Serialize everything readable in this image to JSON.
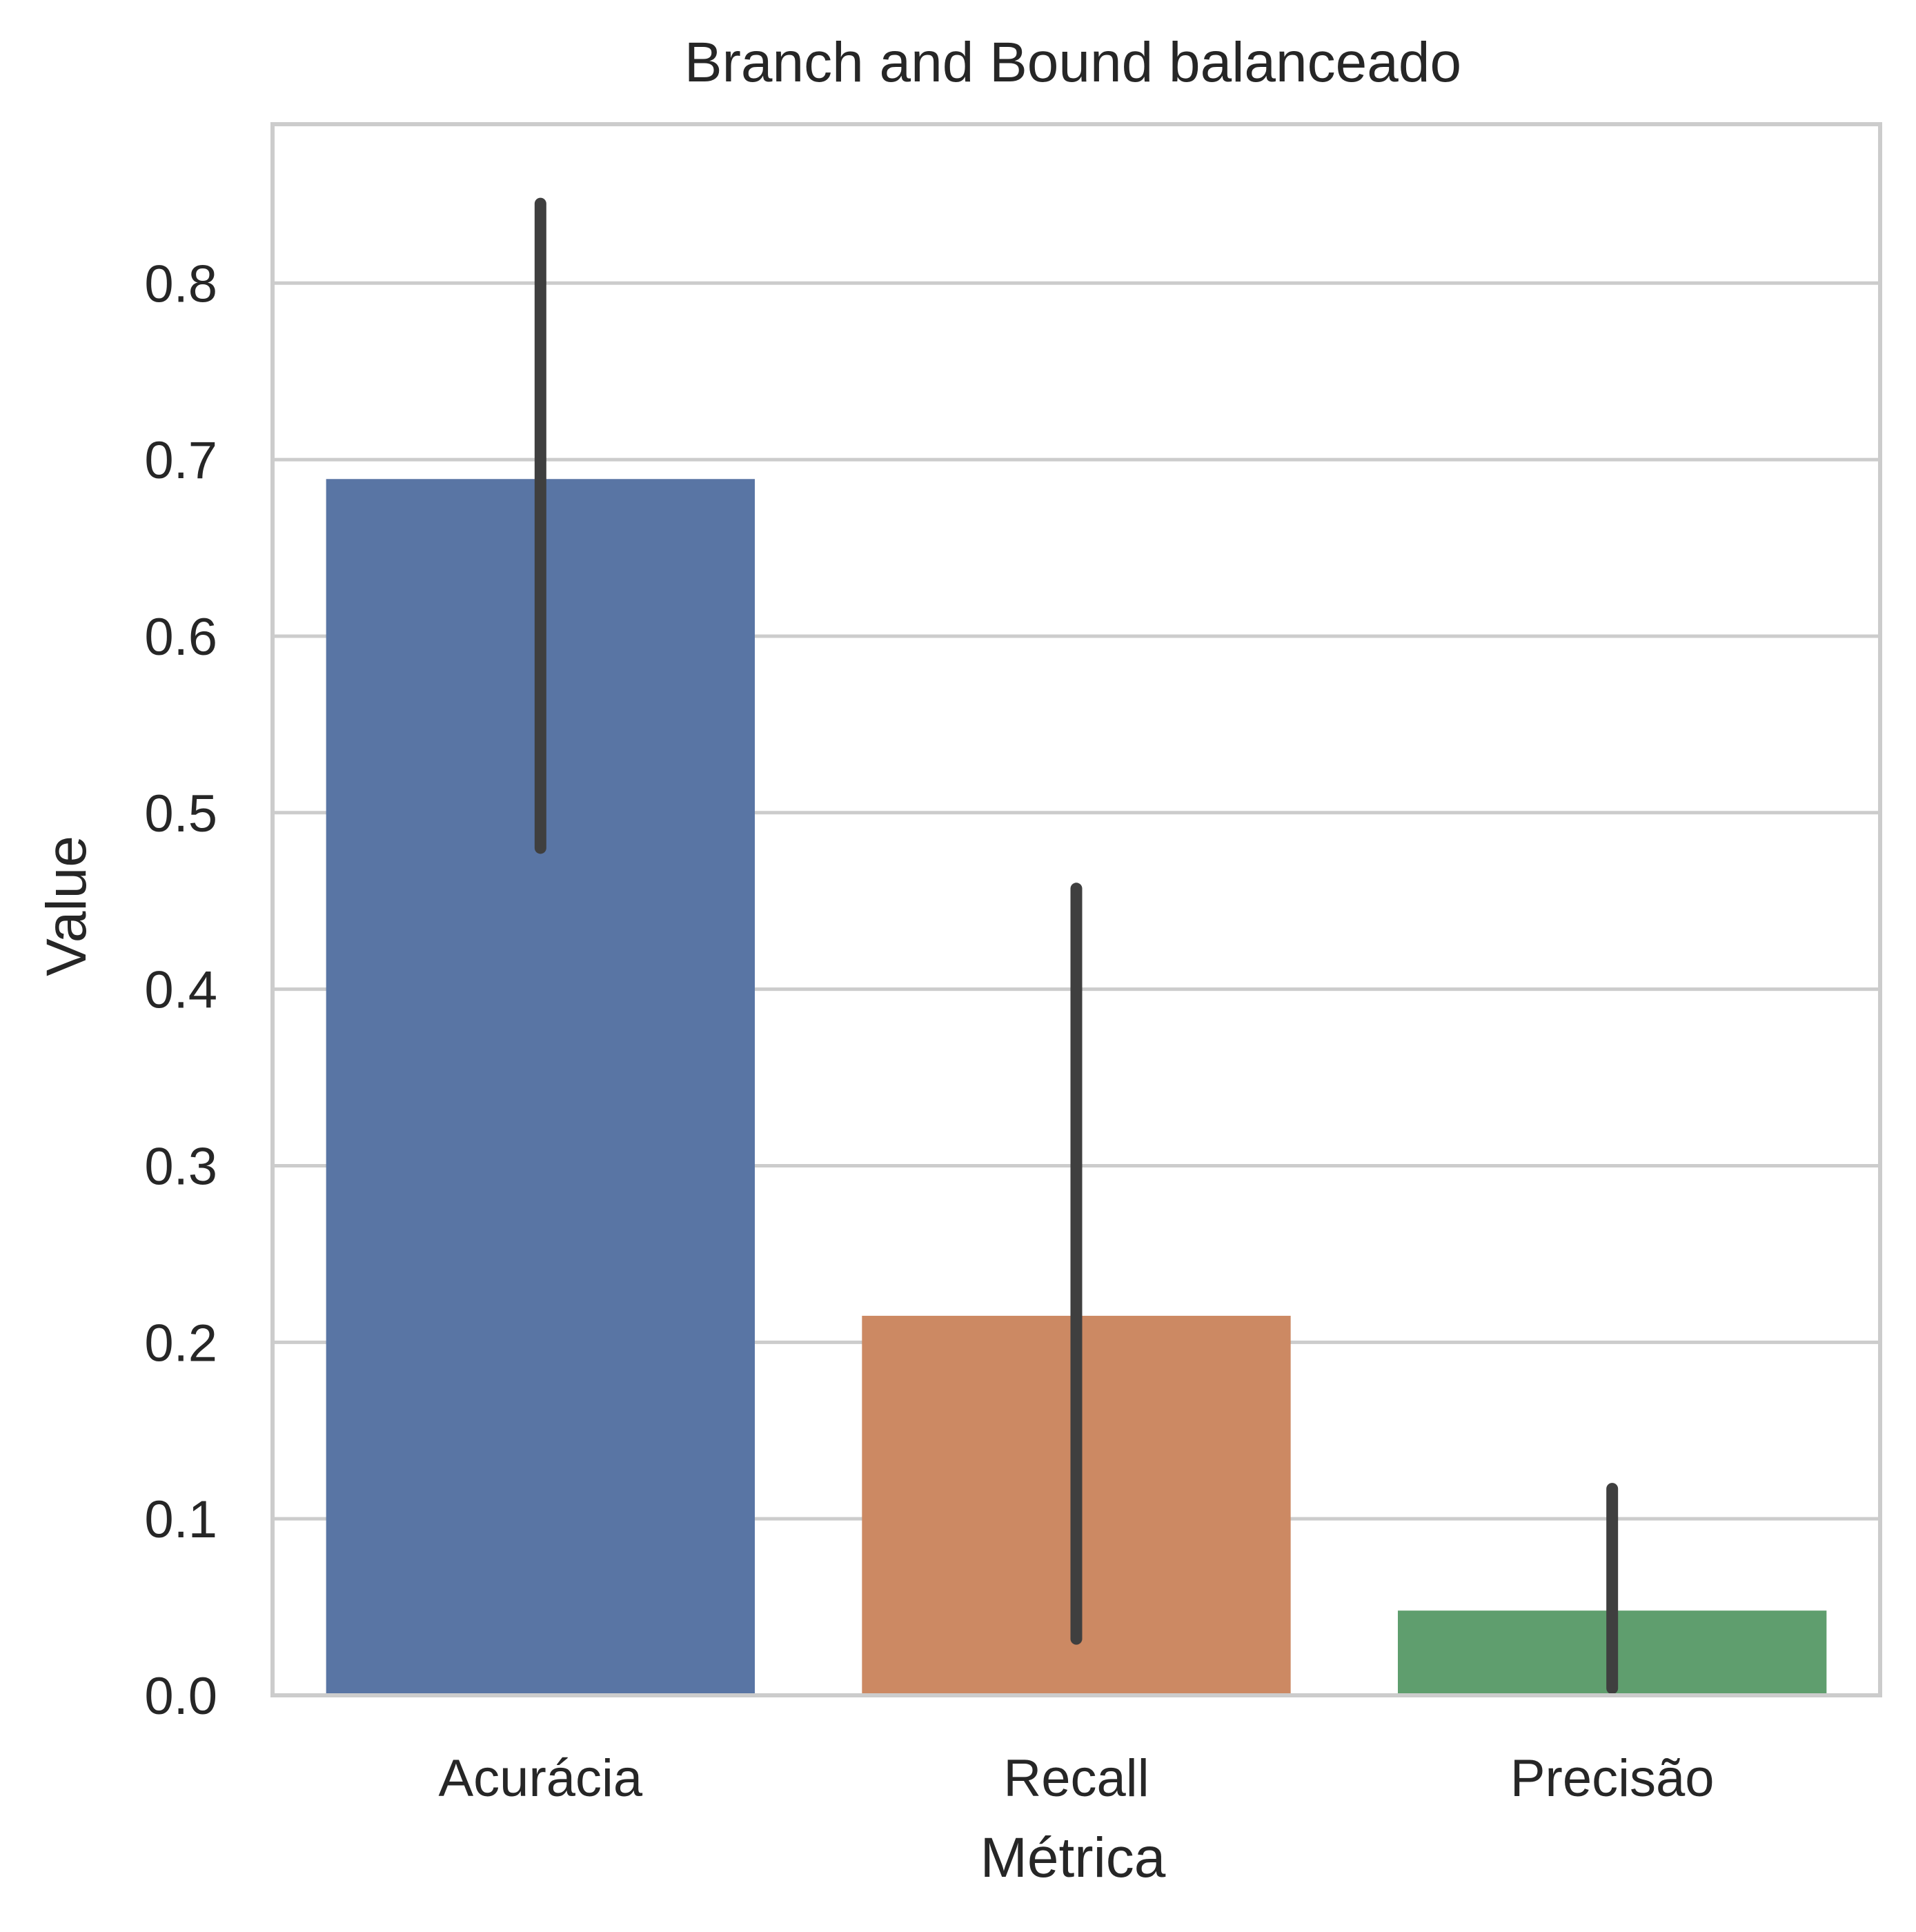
{
  "chart_data": {
    "type": "bar",
    "title": "Branch and Bound balanceado",
    "xlabel": "Métrica",
    "ylabel": "Value",
    "categories": [
      "Acurácia",
      "Recall",
      "Precisão"
    ],
    "values": [
      0.689,
      0.215,
      0.048
    ],
    "error_bars": [
      {
        "low": 0.48,
        "high": 0.845
      },
      {
        "low": 0.032,
        "high": 0.457
      },
      {
        "low": 0.004,
        "high": 0.117
      }
    ],
    "ylim": [
      0,
      0.89
    ],
    "yticks": [
      "0.0",
      "0.1",
      "0.2",
      "0.3",
      "0.4",
      "0.5",
      "0.6",
      "0.7",
      "0.8"
    ],
    "grid": "horizontal",
    "legend": "none",
    "colors": [
      "#5975a4",
      "#cc8963",
      "#5f9e6e"
    ],
    "errorbar_color": "#3f3f3f",
    "grid_color": "#cccccc"
  }
}
